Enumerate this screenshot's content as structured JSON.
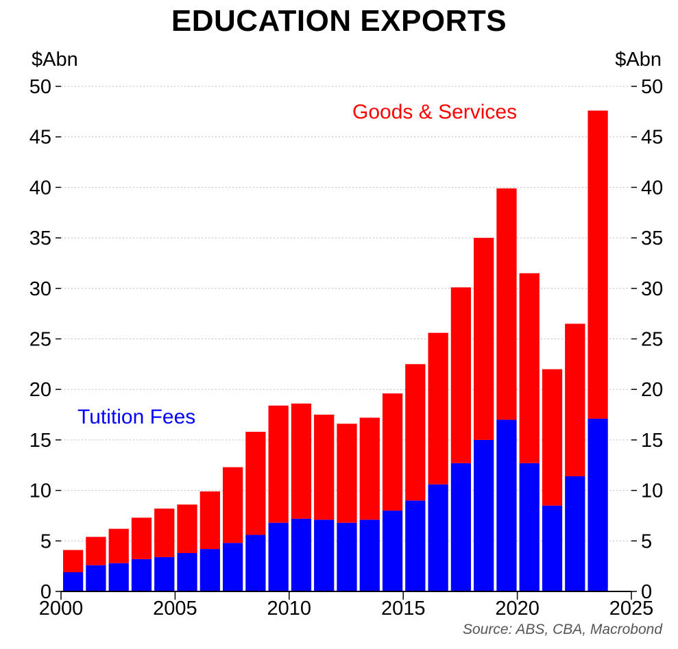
{
  "chart_data": {
    "type": "bar",
    "stacked": true,
    "title": "EDUCATION EXPORTS",
    "y_unit_left": "$Abn",
    "y_unit_right": "$Abn",
    "ylim": [
      0,
      50
    ],
    "y_ticks": [
      "0",
      "5",
      "10",
      "15",
      "20",
      "25",
      "30",
      "35",
      "40",
      "45",
      "50"
    ],
    "xlim": [
      2000,
      2025
    ],
    "x_ticks": [
      "2000",
      "2005",
      "2010",
      "2015",
      "2020",
      "2025"
    ],
    "grid": "horizontal dotted",
    "categories": [
      2000,
      2001,
      2002,
      2003,
      2004,
      2005,
      2006,
      2007,
      2008,
      2009,
      2010,
      2011,
      2012,
      2013,
      2014,
      2015,
      2016,
      2017,
      2018,
      2019,
      2020,
      2021,
      2022,
      2023
    ],
    "series": [
      {
        "name": "Tutition Fees",
        "color": "#0000ff",
        "values": [
          1.9,
          2.6,
          2.8,
          3.2,
          3.4,
          3.8,
          4.2,
          4.8,
          5.6,
          6.8,
          7.2,
          7.1,
          6.8,
          7.1,
          8.0,
          9.0,
          10.6,
          12.7,
          15.0,
          17.0,
          12.7,
          8.5,
          11.4,
          17.1
        ]
      },
      {
        "name": "Goods & Services",
        "color": "#ff0000",
        "values": [
          2.2,
          2.8,
          3.4,
          4.1,
          4.8,
          4.8,
          5.7,
          7.5,
          10.2,
          11.6,
          11.4,
          10.4,
          9.8,
          10.1,
          11.6,
          13.5,
          15.0,
          17.4,
          20.0,
          22.9,
          18.8,
          13.5,
          15.1,
          30.5
        ]
      }
    ],
    "source": "Source: ABS, CBA, Macrobond"
  }
}
